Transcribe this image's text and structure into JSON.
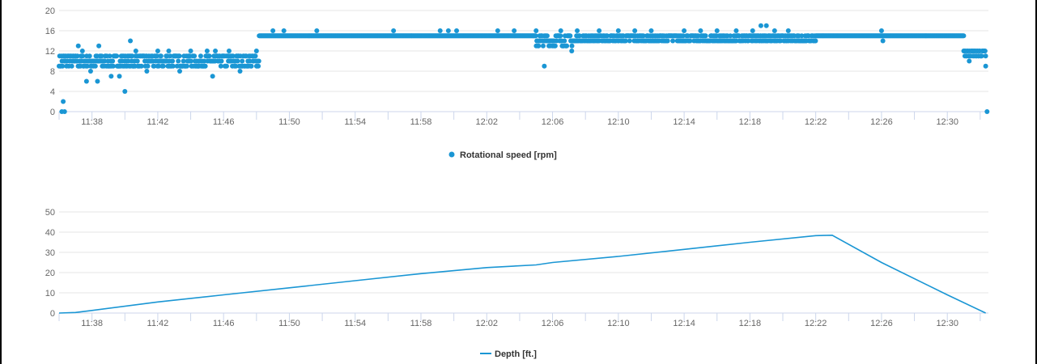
{
  "colors": {
    "series": "#1a96d4",
    "grid": "#e6e6e6",
    "axis": "#ccd6eb",
    "text": "#666666"
  },
  "chart_data": [
    {
      "type": "scatter",
      "title": "",
      "legend": {
        "label": "Rotational speed [rpm]",
        "placement": "bottom-center",
        "marker": "circle"
      },
      "x_ticks": [
        "11:38",
        "11:42",
        "11:46",
        "11:50",
        "11:54",
        "11:58",
        "12:02",
        "12:06",
        "12:10",
        "12:14",
        "12:18",
        "12:22",
        "12:26",
        "12:30"
      ],
      "x_range": [
        "11:36",
        "12:32:30"
      ],
      "y_ticks": [
        "0",
        "4",
        "8",
        "12",
        "16",
        "20"
      ],
      "ylim": [
        0,
        20
      ],
      "grid": true,
      "series": [
        {
          "name": "Rotational speed [rpm]",
          "segments": [
            {
              "from": "11:36:00",
              "to": "11:48:10",
              "center": 10,
              "spread": 1.5
            },
            {
              "from": "11:48:10",
              "to": "12:04:50",
              "center": 15,
              "spread": 0.5
            },
            {
              "from": "12:04:50",
              "to": "12:07:30",
              "center": 14,
              "spread": 1.5
            },
            {
              "from": "12:07:30",
              "to": "12:22:00",
              "center": 14.5,
              "spread": 0.8
            },
            {
              "from": "12:22:00",
              "to": "12:31:00",
              "center": 15,
              "spread": 0.3
            },
            {
              "from": "12:31:00",
              "to": "12:32:20",
              "center": 11.5,
              "spread": 0.8
            }
          ],
          "points": [
            [
              "11:36:10",
              0
            ],
            [
              "11:36:15",
              2
            ],
            [
              "11:36:20",
              0
            ],
            [
              "11:37:10",
              13
            ],
            [
              "11:37:25",
              12
            ],
            [
              "11:37:40",
              6
            ],
            [
              "11:37:55",
              8
            ],
            [
              "11:38:20",
              6
            ],
            [
              "11:38:25",
              13
            ],
            [
              "11:39:10",
              7
            ],
            [
              "11:39:40",
              7
            ],
            [
              "11:40:00",
              4
            ],
            [
              "11:40:20",
              14
            ],
            [
              "11:40:40",
              12
            ],
            [
              "11:41:20",
              8
            ],
            [
              "11:42:00",
              12
            ],
            [
              "11:42:40",
              12
            ],
            [
              "11:43:20",
              8
            ],
            [
              "11:44:00",
              12
            ],
            [
              "11:44:30",
              9
            ],
            [
              "11:45:00",
              12
            ],
            [
              "11:45:20",
              7
            ],
            [
              "11:45:30",
              12
            ],
            [
              "11:46:20",
              12
            ],
            [
              "11:47:00",
              8
            ],
            [
              "11:48:00",
              12
            ],
            [
              "11:49:00",
              16
            ],
            [
              "11:49:40",
              16
            ],
            [
              "11:51:40",
              16
            ],
            [
              "11:56:20",
              16
            ],
            [
              "11:59:10",
              16
            ],
            [
              "11:59:40",
              16
            ],
            [
              "12:00:10",
              16
            ],
            [
              "12:02:40",
              16
            ],
            [
              "12:03:40",
              16
            ],
            [
              "12:05:00",
              16
            ],
            [
              "12:05:30",
              9
            ],
            [
              "12:06:30",
              16
            ],
            [
              "12:07:30",
              16
            ],
            [
              "12:07:10",
              12
            ],
            [
              "12:08:50",
              16
            ],
            [
              "12:10:00",
              16
            ],
            [
              "12:11:00",
              16
            ],
            [
              "12:12:00",
              16
            ],
            [
              "12:14:00",
              16
            ],
            [
              "12:15:00",
              16
            ],
            [
              "12:16:00",
              16
            ],
            [
              "12:17:10",
              16
            ],
            [
              "12:18:10",
              16
            ],
            [
              "12:18:40",
              17
            ],
            [
              "12:19:00",
              17
            ],
            [
              "12:19:30",
              16
            ],
            [
              "12:20:20",
              16
            ],
            [
              "12:26:00",
              16
            ],
            [
              "12:26:05",
              14
            ],
            [
              "12:31:20",
              10
            ],
            [
              "12:32:20",
              9
            ],
            [
              "12:32:25",
              0
            ]
          ]
        }
      ]
    },
    {
      "type": "line",
      "title": "",
      "legend": {
        "label": "Depth [ft.]",
        "placement": "bottom-center",
        "marker": "line"
      },
      "x_ticks": [
        "11:38",
        "11:42",
        "11:46",
        "11:50",
        "11:54",
        "11:58",
        "12:02",
        "12:06",
        "12:10",
        "12:14",
        "12:18",
        "12:22",
        "12:26",
        "12:30"
      ],
      "x_range": [
        "11:36",
        "12:32:30"
      ],
      "y_ticks": [
        "0",
        "10",
        "20",
        "30",
        "40",
        "50"
      ],
      "ylim": [
        0,
        50
      ],
      "grid": true,
      "series": [
        {
          "name": "Depth [ft.]",
          "x": [
            "11:36:00",
            "11:37:00",
            "11:38:00",
            "11:42:00",
            "11:46:00",
            "11:50:00",
            "11:54:00",
            "11:58:00",
            "12:02:00",
            "12:05:00",
            "12:06:00",
            "12:10:00",
            "12:14:00",
            "12:18:00",
            "12:22:00",
            "12:23:00",
            "12:26:00",
            "12:30:00",
            "12:32:20"
          ],
          "y": [
            0,
            0.3,
            1.3,
            5.5,
            9,
            12.5,
            16,
            19.5,
            22.5,
            23.8,
            25,
            28,
            31.5,
            35,
            38.3,
            38.5,
            25,
            9,
            0
          ]
        }
      ]
    }
  ]
}
